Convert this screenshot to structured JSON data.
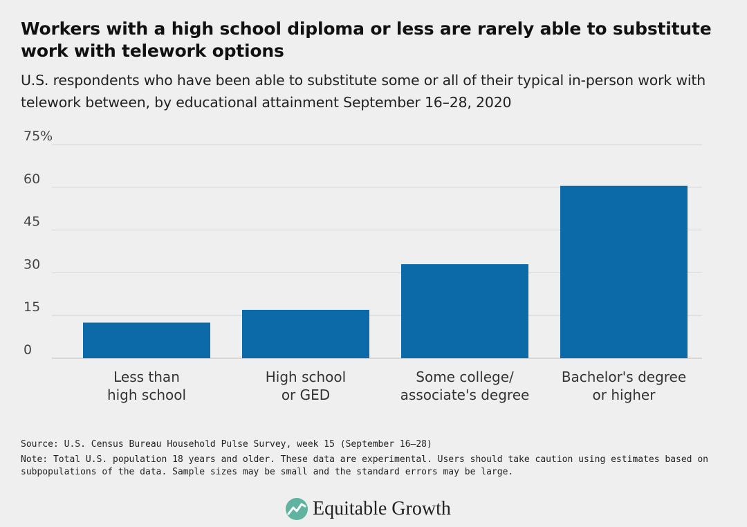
{
  "chart_data": {
    "type": "bar",
    "title": "Workers with a high school diploma or less are rarely able to substitute work with telework options",
    "subtitle": "U.S. respondents who have been able to substitute some or all of their typical in-person work with telework between, by educational attainment September 16–28, 2020",
    "categories": [
      [
        "Less than",
        "high school"
      ],
      [
        "High school",
        "or GED"
      ],
      [
        "Some college/",
        "associate's degree"
      ],
      [
        "Bachelor's degree",
        "or higher"
      ]
    ],
    "values": [
      12.5,
      17,
      33,
      60.5
    ],
    "ylim": [
      0,
      75
    ],
    "yticks": [
      0,
      15,
      30,
      45,
      60,
      75
    ],
    "ytick_labels": [
      "0",
      "15",
      "30",
      "45",
      "60",
      "75%"
    ],
    "xlabel": "",
    "ylabel": "",
    "grid": true,
    "bar_color": "#0d6aa8"
  },
  "footer": {
    "source": "Source: U.S. Census Bureau Household Pulse Survey, week 15 (September 16–28)",
    "note_line1": "Note: Total U.S. population 18 years and older. These data are experimental. Users should take caution using estimates based on",
    "note_line2": "subpopulations of the data. Sample sizes may be small and the standard errors may be large."
  },
  "logo": {
    "text": "Equitable Growth",
    "icon": "equitable-growth-logo-icon",
    "color": "#5fb3a0"
  }
}
